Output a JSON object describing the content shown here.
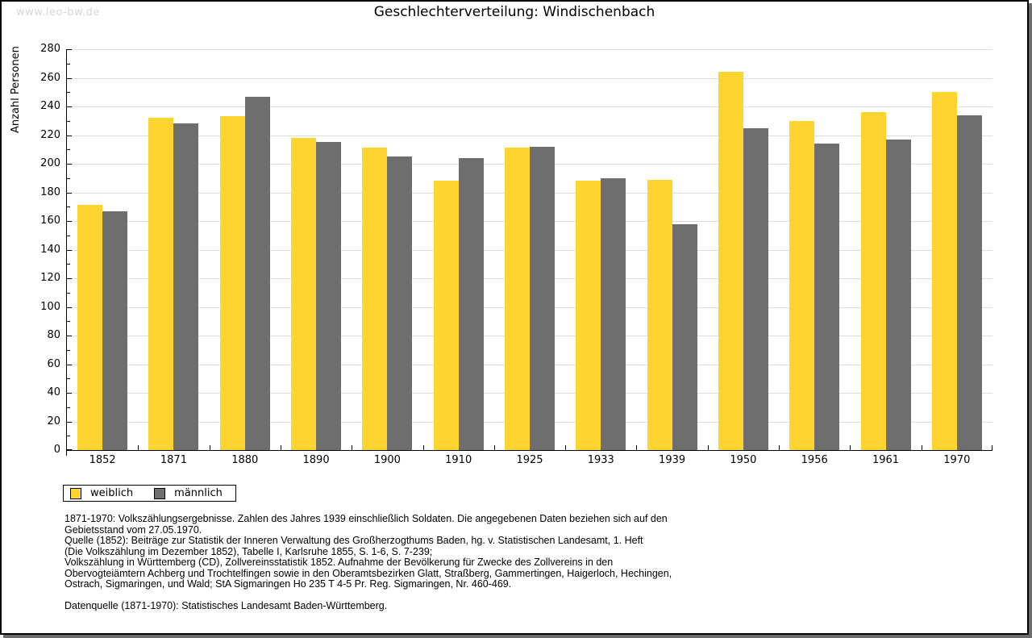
{
  "watermark": "www.leo-bw.de",
  "chart_data": {
    "type": "bar",
    "title": "Geschlechterverteilung: Windischenbach",
    "ylabel": "Anzahl Personen",
    "xlabel": "",
    "categories": [
      "1852",
      "1871",
      "1880",
      "1890",
      "1900",
      "1910",
      "1925",
      "1933",
      "1939",
      "1950",
      "1956",
      "1961",
      "1970"
    ],
    "series": [
      {
        "name": "weiblich",
        "color": "#FCD530",
        "values": [
          171,
          232,
          233,
          218,
          211,
          188,
          211,
          188,
          189,
          264,
          230,
          236,
          250
        ]
      },
      {
        "name": "männlich",
        "color": "#6E6E6E",
        "values": [
          167,
          228,
          247,
          215,
          205,
          204,
          212,
          190,
          158,
          225,
          214,
          217,
          234
        ]
      }
    ],
    "ylim": [
      0,
      280
    ],
    "ytick_step": 20,
    "yminor_step": 10,
    "grid": true,
    "gridline_color": "#DDDDDD",
    "legend_position": "bottom-left"
  },
  "footnotes": {
    "lines": [
      "1871-1970: Volkszählungsergebnisse. Zahlen des Jahres 1939 einschließlich Soldaten. Die angegebenen Daten beziehen sich auf den",
      "Gebietsstand vom 27.05.1970.",
      "Quelle (1852): Beiträge zur Statistik der Inneren Verwaltung des Großherzogthums Baden, hg. v. Statistischen Landesamt, 1. Heft",
      "(Die Volkszählung im Dezember 1852), Tabelle I, Karlsruhe 1855, S. 1-6, S. 7-239;",
      "Volkszählung in Württemberg (CD), Zollvereinsstatistik 1852. Aufnahme der Bevölkerung für Zwecke des Zollvereins in den",
      "Obervogteiämtern Achberg und Trochtelfingen sowie in den Oberamtsbezirken Glatt, Straßberg, Gammertingen, Haigerloch, Hechingen,",
      "Ostrach, Sigmaringen, und Wald; StA Sigmaringen Ho 235 T 4-5 Pr. Reg. Sigmaringen, Nr. 460-469.",
      "",
      "Datenquelle (1871-1970): Statistisches Landesamt Baden-Württemberg."
    ]
  },
  "colors": {
    "female_bar": "#FCD530",
    "male_bar": "#6E6E6E",
    "grid": "#DDDDDD",
    "watermark_text": "#D6D6D6",
    "frame_border": "#000000",
    "frame_shadow": "#6E6E6E"
  }
}
